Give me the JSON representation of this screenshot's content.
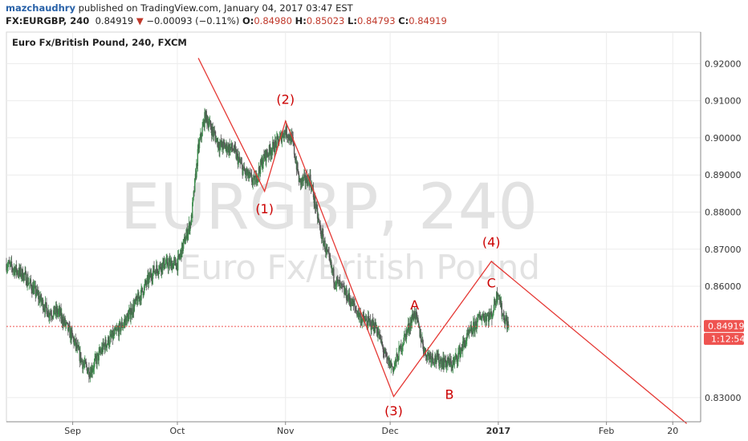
{
  "header": {
    "user": "mazchaudhry",
    "published": "published on TradingView.com, January 04, 2017 03:47 EST",
    "symbol": "FX:EURGBP, 240",
    "last": "0.84919",
    "arrow": "▼",
    "change": "−0.00093 (−0.11%)",
    "o_label": "O:",
    "o_value": "0.84980",
    "h_label": "H:",
    "h_value": "0.85023",
    "l_label": "L:",
    "l_value": "0.84793",
    "c_label": "C:",
    "c_value": "0.84919"
  },
  "panel_title": "Euro Fx/British Pound, 240, FXCM",
  "watermark": {
    "line1": "EURGBP, 240",
    "line2": "Euro Fx/British Pound"
  },
  "price_badge": "0.84919",
  "countdown_badge": "1:12:54",
  "colors": {
    "wave": "#e53935",
    "label": "#cc0000",
    "badge": "#ef5350",
    "grid": "#ececec"
  },
  "chart_data": {
    "type": "candlestick",
    "title": "Euro Fx/British Pound, 240, FXCM",
    "y_ticks": [
      "0.92000",
      "0.91000",
      "0.90000",
      "0.89000",
      "0.88000",
      "0.87000",
      "0.86000",
      "0.83000"
    ],
    "y_tick_values": [
      0.92,
      0.91,
      0.9,
      0.89,
      0.88,
      0.87,
      0.86,
      0.83
    ],
    "x_ticks": [
      "Sep",
      "Oct",
      "Nov",
      "Dec",
      "2017",
      "Feb",
      "20"
    ],
    "x_tick_dates": [
      "2016-09-01",
      "2016-10-01",
      "2016-11-01",
      "2016-12-01",
      "2017-01-01",
      "2017-02-01",
      "2017-02-20"
    ],
    "x_range": [
      "2016-08-13",
      "2017-02-28"
    ],
    "ylim": [
      0.8235,
      0.9285
    ],
    "last_price": 0.84919,
    "price_path": [
      [
        "2016-08-13",
        0.866
      ],
      [
        "2016-08-18",
        0.863
      ],
      [
        "2016-08-23",
        0.856
      ],
      [
        "2016-08-25",
        0.853
      ],
      [
        "2016-08-28",
        0.853
      ],
      [
        "2016-09-01",
        0.846
      ],
      [
        "2016-09-04",
        0.839
      ],
      [
        "2016-09-06",
        0.837
      ],
      [
        "2016-09-10",
        0.844
      ],
      [
        "2016-09-14",
        0.848
      ],
      [
        "2016-09-17",
        0.852
      ],
      [
        "2016-09-20",
        0.857
      ],
      [
        "2016-09-24",
        0.864
      ],
      [
        "2016-09-27",
        0.866
      ],
      [
        "2016-10-01",
        0.866
      ],
      [
        "2016-10-03",
        0.872
      ],
      [
        "2016-10-05",
        0.878
      ],
      [
        "2016-10-07",
        0.897
      ],
      [
        "2016-10-09",
        0.906
      ],
      [
        "2016-10-11",
        0.902
      ],
      [
        "2016-10-13",
        0.898
      ],
      [
        "2016-10-17",
        0.897
      ],
      [
        "2016-10-20",
        0.891
      ],
      [
        "2016-10-23",
        0.888
      ],
      [
        "2016-10-26",
        0.895
      ],
      [
        "2016-10-29",
        0.898
      ],
      [
        "2016-11-01",
        0.902
      ],
      [
        "2016-11-03",
        0.899
      ],
      [
        "2016-11-05",
        0.888
      ],
      [
        "2016-11-08",
        0.889
      ],
      [
        "2016-11-11",
        0.875
      ],
      [
        "2016-11-15",
        0.862
      ],
      [
        "2016-11-19",
        0.857
      ],
      [
        "2016-11-23",
        0.851
      ],
      [
        "2016-11-27",
        0.849
      ],
      [
        "2016-11-30",
        0.84
      ],
      [
        "2016-12-02",
        0.838
      ],
      [
        "2016-12-05",
        0.846
      ],
      [
        "2016-12-08",
        0.853
      ],
      [
        "2016-12-11",
        0.842
      ],
      [
        "2016-12-15",
        0.84
      ],
      [
        "2016-12-19",
        0.839
      ],
      [
        "2016-12-23",
        0.846
      ],
      [
        "2016-12-27",
        0.852
      ],
      [
        "2016-12-30",
        0.852
      ],
      [
        "2017-01-01",
        0.859
      ],
      [
        "2017-01-02",
        0.853
      ],
      [
        "2017-01-04",
        0.849
      ]
    ],
    "wave_points": [
      {
        "date": "2016-10-07",
        "price": 0.9215
      },
      {
        "date": "2016-10-26",
        "price": 0.8856
      },
      {
        "date": "2016-11-01",
        "price": 0.9045
      },
      {
        "date": "2016-11-05",
        "price": 0.8955
      },
      {
        "date": "2016-12-02",
        "price": 0.8303
      },
      {
        "date": "2016-12-30",
        "price": 0.8667
      },
      {
        "date": "2017-02-24",
        "price": 0.823
      }
    ],
    "labels": [
      {
        "text": "(1)",
        "date": "2016-10-26",
        "price": 0.881
      },
      {
        "text": "(2)",
        "date": "2016-11-01",
        "price": 0.9105
      },
      {
        "text": "(3)",
        "date": "2016-12-02",
        "price": 0.8265
      },
      {
        "text": "A",
        "date": "2016-12-08",
        "price": 0.855
      },
      {
        "text": "B",
        "date": "2016-12-18",
        "price": 0.831
      },
      {
        "text": "(4)",
        "date": "2016-12-30",
        "price": 0.872
      },
      {
        "text": "C",
        "date": "2016-12-30",
        "price": 0.861
      }
    ]
  }
}
